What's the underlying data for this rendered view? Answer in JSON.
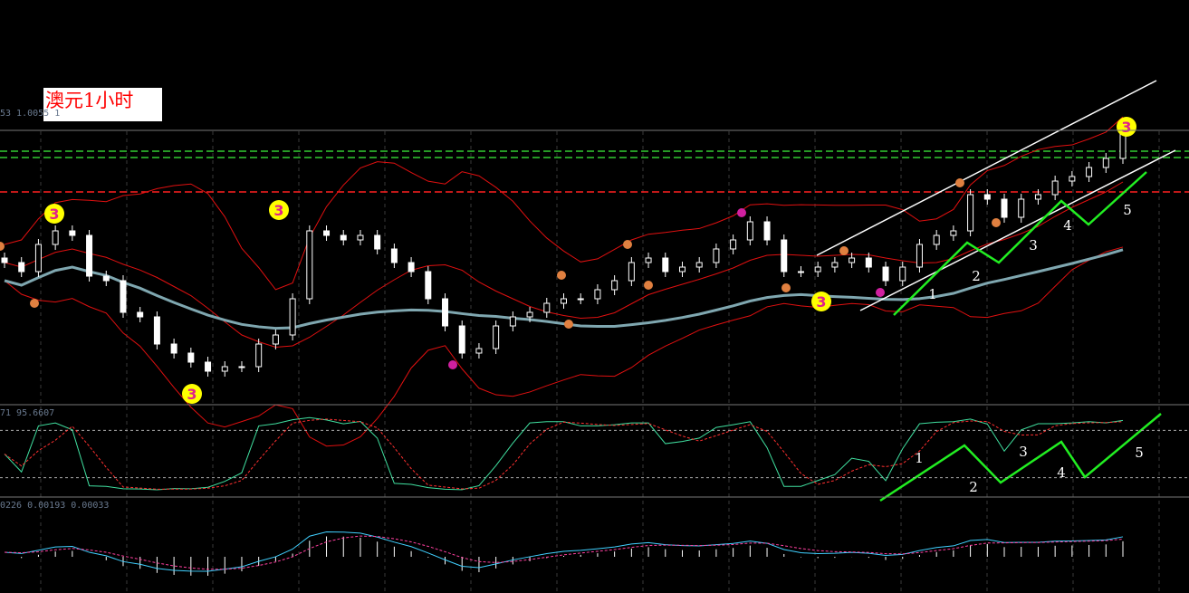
{
  "title": "澳元1小时",
  "panels": {
    "main_label": "53 1.0055 1",
    "stoch_label": "71 95.6607",
    "macd_label": "0226 0.00193 0.00033"
  },
  "colors": {
    "background": "#000000",
    "grid": "#3a3a3a",
    "candle_up": "#ffffff",
    "candle_down": "#ffffff",
    "bollinger": "#e01010",
    "moving_average": "#7fa7b0",
    "resistance_green": "#33cc33",
    "resistance_red": "#ff2020",
    "channel": "#ffffff",
    "wave": "#22ee22",
    "marker_yellow": "#ffff00",
    "stoch_main": "#40e0a0",
    "stoch_signal": "#ff3030",
    "macd_line": "#40d0ff",
    "macd_signal": "#ff40a0",
    "macd_hist": "#ffffff"
  },
  "chart_data": {
    "type": "candlestick",
    "closes": [
      1.031,
      1.029,
      1.035,
      1.038,
      1.037,
      1.028,
      1.027,
      1.02,
      1.019,
      1.013,
      1.011,
      1.009,
      1.007,
      1.008,
      1.008,
      1.013,
      1.015,
      1.023,
      1.038,
      1.037,
      1.036,
      1.037,
      1.034,
      1.031,
      1.029,
      1.023,
      1.017,
      1.011,
      1.012,
      1.017,
      1.019,
      1.02,
      1.022,
      1.023,
      1.023,
      1.025,
      1.027,
      1.031,
      1.032,
      1.029,
      1.03,
      1.031,
      1.034,
      1.036,
      1.04,
      1.036,
      1.029,
      1.029,
      1.03,
      1.031,
      1.032,
      1.03,
      1.027,
      1.03,
      1.035,
      1.037,
      1.038,
      1.046,
      1.045,
      1.041,
      1.045,
      1.046,
      1.049,
      1.05,
      1.052,
      1.054,
      1.06
    ],
    "ylim": [
      1.0,
      1.06
    ],
    "horizontal_lines": [
      {
        "price": 1.0556,
        "color": "green",
        "style": "dashed"
      },
      {
        "price": 1.0542,
        "color": "green",
        "style": "dashed"
      },
      {
        "price": 1.0466,
        "color": "red",
        "style": "dashed"
      }
    ],
    "indicators": [
      "Bollinger Bands",
      "Moving Average",
      "Stochastic",
      "MACD"
    ],
    "grid": true,
    "markers_3": [
      "3",
      "3",
      "3",
      "3",
      "3"
    ],
    "wave_labels_main": [
      "1",
      "2",
      "3",
      "4",
      "5"
    ],
    "wave_labels_stoch": [
      "1",
      "2",
      "3",
      "4",
      "5"
    ]
  }
}
